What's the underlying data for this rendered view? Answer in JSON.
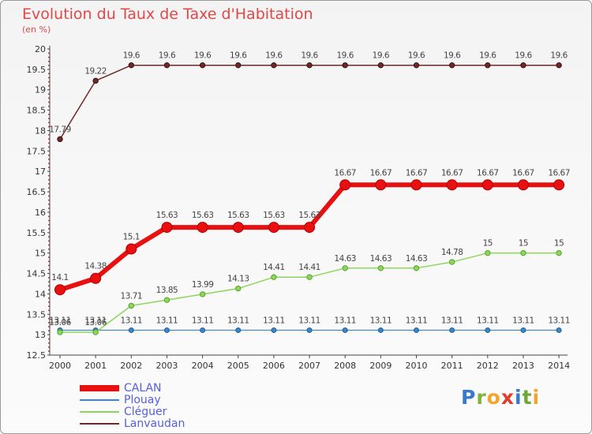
{
  "header": {
    "title": "Evolution du Taux de Taxe d'Habitation",
    "subtitle": "(en %)"
  },
  "logo_text": "Proxiti",
  "colors": {
    "CALAN": "#e81010",
    "Plouay": "#3a86c8",
    "Cléguer": "#8cd65a",
    "Lanvaudan": "#6b2a2a",
    "title": "#e04848",
    "legend_text": "#5560dd"
  },
  "chart_data": {
    "type": "line",
    "title": "Evolution du Taux de Taxe d'Habitation",
    "subtitle": "(en %)",
    "xlabel": "",
    "ylabel": "",
    "ylim": [
      12.5,
      20
    ],
    "yticks": [
      12.5,
      13,
      13.5,
      14,
      14.5,
      15,
      15.5,
      16,
      16.5,
      17,
      17.5,
      18,
      18.5,
      19,
      19.5,
      20
    ],
    "ytick_labels": [
      "12.5",
      "13",
      "13.5",
      "14",
      "14.5",
      "15",
      "15.5",
      "16",
      "16.5",
      "17",
      "17.5",
      "18",
      "18.5",
      "19",
      "19.5",
      "20"
    ],
    "categories": [
      "2000",
      "2001",
      "2002",
      "2003",
      "2004",
      "2005",
      "2006",
      "2007",
      "2008",
      "2009",
      "2010",
      "2011",
      "2012",
      "2013",
      "2014"
    ],
    "grid": false,
    "legend_position": "bottom-left",
    "series": [
      {
        "name": "CALAN",
        "values": [
          14.1,
          14.38,
          15.1,
          15.63,
          15.63,
          15.63,
          15.63,
          15.63,
          16.67,
          16.67,
          16.67,
          16.67,
          16.67,
          16.67,
          16.67
        ],
        "labels": [
          "14.1",
          "14.38",
          "15.1",
          "15.63",
          "15.63",
          "15.63",
          "15.63",
          "15.63",
          "16.67",
          "16.67",
          "16.67",
          "16.67",
          "16.67",
          "16.67",
          "16.67"
        ]
      },
      {
        "name": "Plouay",
        "values": [
          13.11,
          13.11,
          13.11,
          13.11,
          13.11,
          13.11,
          13.11,
          13.11,
          13.11,
          13.11,
          13.11,
          13.11,
          13.11,
          13.11,
          13.11
        ],
        "labels": [
          "13.11",
          "13.11",
          "13.11",
          "13.11",
          "13.11",
          "13.11",
          "13.11",
          "13.11",
          "13.11",
          "13.11",
          "13.11",
          "13.11",
          "13.11",
          "13.11",
          "13.11"
        ]
      },
      {
        "name": "Cléguer",
        "values": [
          13.06,
          13.06,
          13.71,
          13.85,
          13.99,
          14.13,
          14.41,
          14.41,
          14.63,
          14.63,
          14.63,
          14.78,
          15,
          15,
          15
        ],
        "labels": [
          "13.06",
          "13.06",
          "13.71",
          "13.85",
          "13.99",
          "14.13",
          "14.41",
          "14.41",
          "14.63",
          "14.63",
          "14.63",
          "14.78",
          "15",
          "15",
          "15"
        ]
      },
      {
        "name": "Lanvaudan",
        "values": [
          17.79,
          19.22,
          19.6,
          19.6,
          19.6,
          19.6,
          19.6,
          19.6,
          19.6,
          19.6,
          19.6,
          19.6,
          19.6,
          19.6,
          19.6
        ],
        "labels": [
          "17.79",
          "19.22",
          "19.6",
          "19.6",
          "19.6",
          "19.6",
          "19.6",
          "19.6",
          "19.6",
          "19.6",
          "19.6",
          "19.6",
          "19.6",
          "19.6",
          "19.6"
        ]
      }
    ]
  }
}
